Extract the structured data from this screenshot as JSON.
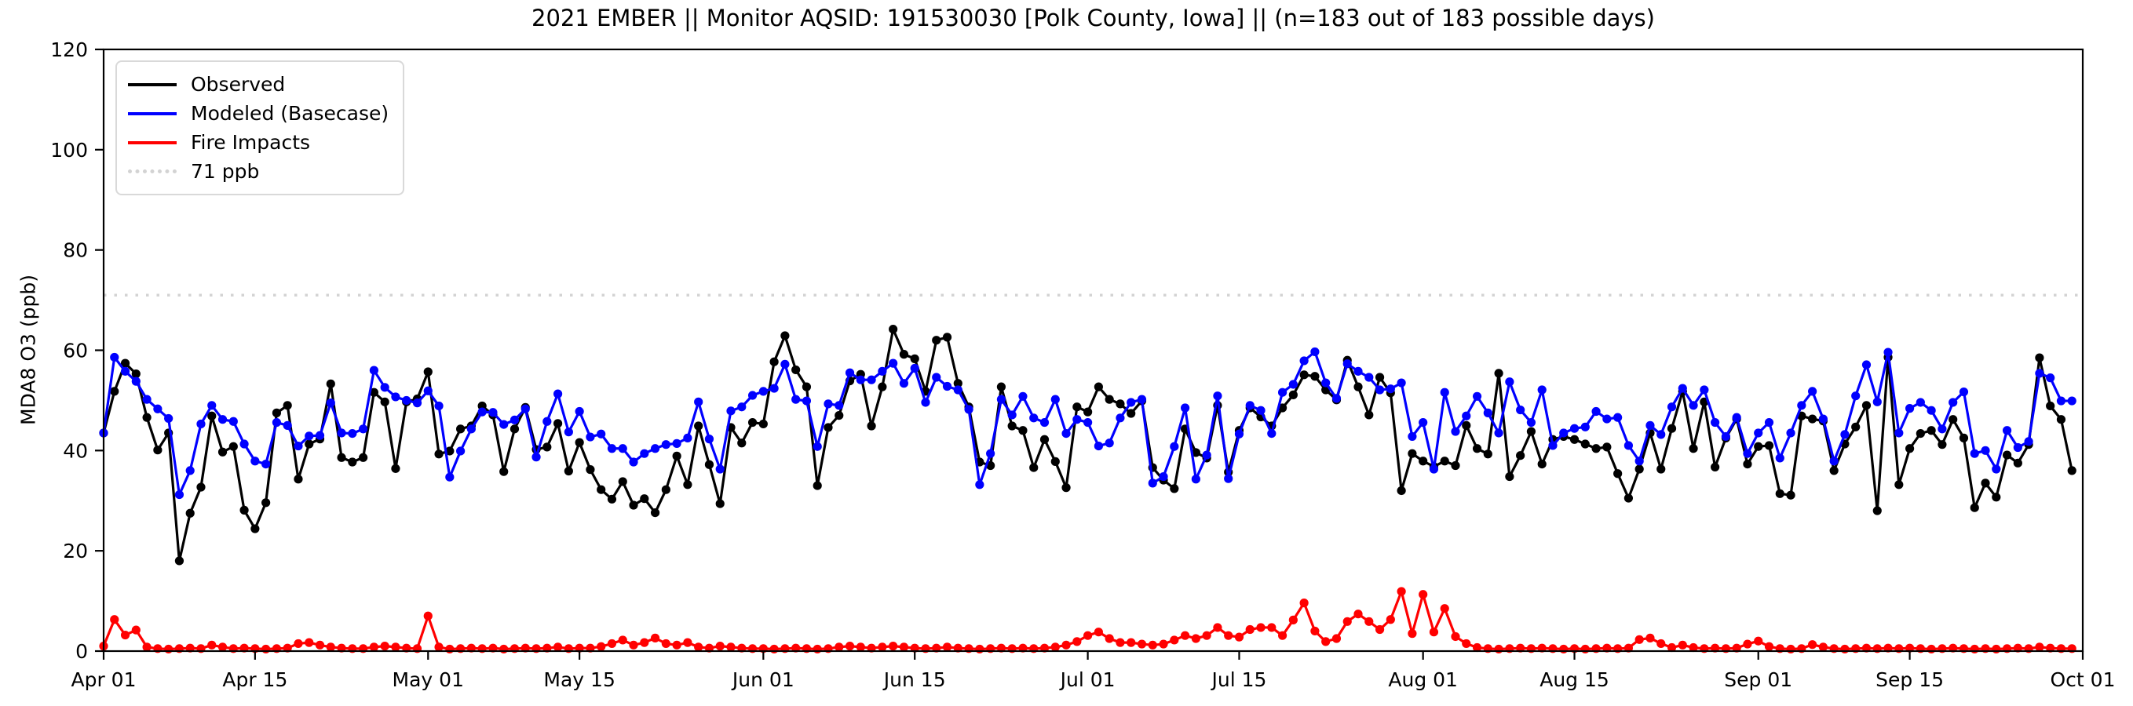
{
  "chart_data": {
    "type": "line",
    "title": "2021 EMBER || Monitor AQSID: 191530030 [Polk County, Iowa] || (n=183 out of 183 possible days)",
    "xlabel": "",
    "ylabel": "MDA8 O3 (ppb)",
    "ylim": [
      0,
      120
    ],
    "yticks": [
      0,
      20,
      40,
      60,
      80,
      100,
      120
    ],
    "x_domain_days": 183,
    "x_start": "Apr 01",
    "x_end": "Oct 01",
    "x_tick_labels": [
      "Apr 01",
      "Apr 15",
      "May 01",
      "May 15",
      "Jun 01",
      "Jun 15",
      "Jul 01",
      "Jul 15",
      "Aug 01",
      "Aug 15",
      "Sep 01",
      "Sep 15",
      "Oct 01"
    ],
    "x_tick_offsets": [
      0,
      14,
      30,
      44,
      61,
      75,
      91,
      105,
      122,
      136,
      153,
      167,
      183
    ],
    "grid": false,
    "legend_position": "upper-left",
    "threshold": {
      "label": "71 ppb",
      "value": 71,
      "color": "#d3d3d3",
      "style": "dotted"
    },
    "series": [
      {
        "name": "Observed",
        "color": "#000000",
        "marker": "circle",
        "values": [
          43.5,
          51.8,
          57.4,
          55.3,
          46.6,
          40.1,
          43.5,
          18.0,
          27.5,
          32.7,
          46.9,
          39.7,
          40.8,
          28.1,
          24.4,
          29.6,
          47.5,
          49.0,
          34.3,
          41.3,
          42.3,
          53.3,
          38.6,
          37.7,
          38.6,
          51.6,
          49.7,
          36.4,
          49.7,
          50.3,
          55.7,
          39.3,
          39.9,
          44.3,
          44.9,
          48.9,
          47.1,
          35.8,
          44.3,
          48.6,
          40.2,
          40.7,
          45.4,
          35.9,
          41.6,
          36.2,
          32.2,
          30.3,
          33.8,
          29.1,
          30.4,
          27.6,
          32.2,
          38.9,
          33.2,
          44.9,
          37.2,
          29.4,
          44.6,
          41.5,
          45.6,
          45.3,
          57.7,
          62.9,
          56.1,
          52.7,
          33.0,
          44.6,
          47.0,
          53.9,
          55.2,
          44.9,
          52.7,
          64.2,
          59.2,
          58.3,
          51.8,
          62.0,
          62.6,
          53.4,
          48.7,
          37.7,
          37.0,
          52.7,
          44.9,
          44.0,
          36.6,
          42.2,
          37.8,
          32.6,
          48.7,
          47.7,
          52.7,
          50.2,
          49.3,
          47.4,
          49.9,
          36.6,
          34.1,
          32.4,
          44.3,
          39.6,
          38.5,
          49.0,
          35.7,
          44.0,
          48.5,
          46.7,
          44.9,
          48.5,
          51.1,
          55.1,
          54.8,
          52.1,
          50.1,
          58.0,
          52.7,
          47.1,
          54.6,
          51.5,
          32.0,
          39.4,
          37.9,
          36.8,
          37.9,
          37.0,
          45.0,
          40.4,
          39.3,
          55.4,
          34.8,
          39.0,
          43.8,
          37.3,
          42.2,
          42.8,
          42.2,
          41.3,
          40.4,
          40.7,
          35.4,
          30.5,
          36.3,
          43.5,
          36.3,
          44.4,
          51.8,
          40.4,
          49.7,
          36.7,
          42.5,
          46.3,
          37.3,
          40.8,
          41.0,
          31.4,
          31.1,
          46.9,
          46.3,
          45.9,
          36.0,
          41.3,
          44.7,
          49.0,
          28.0,
          58.6,
          33.2,
          40.4,
          43.4,
          44.0,
          41.2,
          46.2,
          42.5,
          28.6,
          33.5,
          30.7,
          39.1,
          37.5,
          41.2,
          58.5,
          48.9,
          46.2,
          36.0
        ]
      },
      {
        "name": "Modeled (Basecase)",
        "color": "#0000ff",
        "marker": "circle",
        "values": [
          43.5,
          58.6,
          55.8,
          53.8,
          50.2,
          48.3,
          46.4,
          31.2,
          36.0,
          45.3,
          49.0,
          46.2,
          45.8,
          41.3,
          37.9,
          37.3,
          45.6,
          45.0,
          40.9,
          42.9,
          43.0,
          49.5,
          43.5,
          43.4,
          44.3,
          56.0,
          52.6,
          50.7,
          50.0,
          49.5,
          51.9,
          48.9,
          34.7,
          39.9,
          44.3,
          47.7,
          47.6,
          45.2,
          46.1,
          48.3,
          38.7,
          45.8,
          51.3,
          43.7,
          47.8,
          42.7,
          43.3,
          40.4,
          40.4,
          37.7,
          39.4,
          40.4,
          41.2,
          41.4,
          42.5,
          49.7,
          42.3,
          36.3,
          47.9,
          48.7,
          51.0,
          51.8,
          52.4,
          57.2,
          50.2,
          49.9,
          40.8,
          49.3,
          49.0,
          55.5,
          54.1,
          54.1,
          55.8,
          57.4,
          53.4,
          56.4,
          49.6,
          54.6,
          52.8,
          52.1,
          48.2,
          33.2,
          39.4,
          50.2,
          47.1,
          50.8,
          46.5,
          45.6,
          50.2,
          43.4,
          46.2,
          45.6,
          40.9,
          41.5,
          46.5,
          49.6,
          50.2,
          33.5,
          34.8,
          40.8,
          48.5,
          34.3,
          39.1,
          50.9,
          34.4,
          43.3,
          49.0,
          48.0,
          43.4,
          51.6,
          53.2,
          57.9,
          59.7,
          53.5,
          50.4,
          57.3,
          55.8,
          54.6,
          52.1,
          52.3,
          53.5,
          42.8,
          45.6,
          36.3,
          51.6,
          43.8,
          46.9,
          50.8,
          47.5,
          43.5,
          53.7,
          48.1,
          45.6,
          52.1,
          41.0,
          43.5,
          44.4,
          44.7,
          47.8,
          46.3,
          46.6,
          41.0,
          37.9,
          45.0,
          43.2,
          48.7,
          52.4,
          49.0,
          52.1,
          45.6,
          42.8,
          46.6,
          39.4,
          43.5,
          45.6,
          38.5,
          43.5,
          49.0,
          51.8,
          46.3,
          37.9,
          43.2,
          50.9,
          57.1,
          49.7,
          59.6,
          43.5,
          48.4,
          49.6,
          48.0,
          44.3,
          49.6,
          51.7,
          39.4,
          40.0,
          36.3,
          44.0,
          40.6,
          41.8,
          55.4,
          54.5,
          49.9,
          49.9
        ]
      },
      {
        "name": "Fire Impacts",
        "color": "#ff0000",
        "marker": "circle",
        "values": [
          1.0,
          6.3,
          3.2,
          4.2,
          0.8,
          0.5,
          0.4,
          0.5,
          0.6,
          0.5,
          1.2,
          0.8,
          0.5,
          0.6,
          0.5,
          0.4,
          0.5,
          0.6,
          1.5,
          1.7,
          1.2,
          0.8,
          0.6,
          0.5,
          0.5,
          0.8,
          1.0,
          0.8,
          0.6,
          0.5,
          7.0,
          0.8,
          0.4,
          0.5,
          0.6,
          0.5,
          0.6,
          0.4,
          0.5,
          0.6,
          0.5,
          0.6,
          0.8,
          0.5,
          0.6,
          0.6,
          0.9,
          1.5,
          2.2,
          1.2,
          1.7,
          2.6,
          1.5,
          1.2,
          1.7,
          0.8,
          0.6,
          1.0,
          0.8,
          0.6,
          0.5,
          0.5,
          0.4,
          0.5,
          0.6,
          0.5,
          0.4,
          0.5,
          0.8,
          1.0,
          0.8,
          0.6,
          0.8,
          1.0,
          0.8,
          0.6,
          0.5,
          0.6,
          0.8,
          0.6,
          0.5,
          0.4,
          0.5,
          0.6,
          0.5,
          0.6,
          0.5,
          0.6,
          0.8,
          1.2,
          1.9,
          3.1,
          3.8,
          2.5,
          1.7,
          1.7,
          1.4,
          1.2,
          1.4,
          2.2,
          3.1,
          2.5,
          3.1,
          4.7,
          3.1,
          2.8,
          4.3,
          4.7,
          4.7,
          3.1,
          6.2,
          9.6,
          4.0,
          1.9,
          2.5,
          5.9,
          7.4,
          5.9,
          4.3,
          6.3,
          11.9,
          3.5,
          11.3,
          3.8,
          8.5,
          2.9,
          1.5,
          0.7,
          0.5,
          0.4,
          0.5,
          0.6,
          0.5,
          0.6,
          0.5,
          0.4,
          0.5,
          0.4,
          0.5,
          0.6,
          0.5,
          0.6,
          2.3,
          2.6,
          1.5,
          0.7,
          1.2,
          0.7,
          0.5,
          0.6,
          0.5,
          0.6,
          1.4,
          2.0,
          0.9,
          0.5,
          0.4,
          0.5,
          1.3,
          0.8,
          0.5,
          0.4,
          0.5,
          0.6,
          0.5,
          0.6,
          0.5,
          0.6,
          0.5,
          0.4,
          0.5,
          0.6,
          0.5,
          0.4,
          0.5,
          0.4,
          0.5,
          0.6,
          0.5,
          0.8,
          0.6,
          0.5,
          0.5
        ]
      }
    ]
  }
}
